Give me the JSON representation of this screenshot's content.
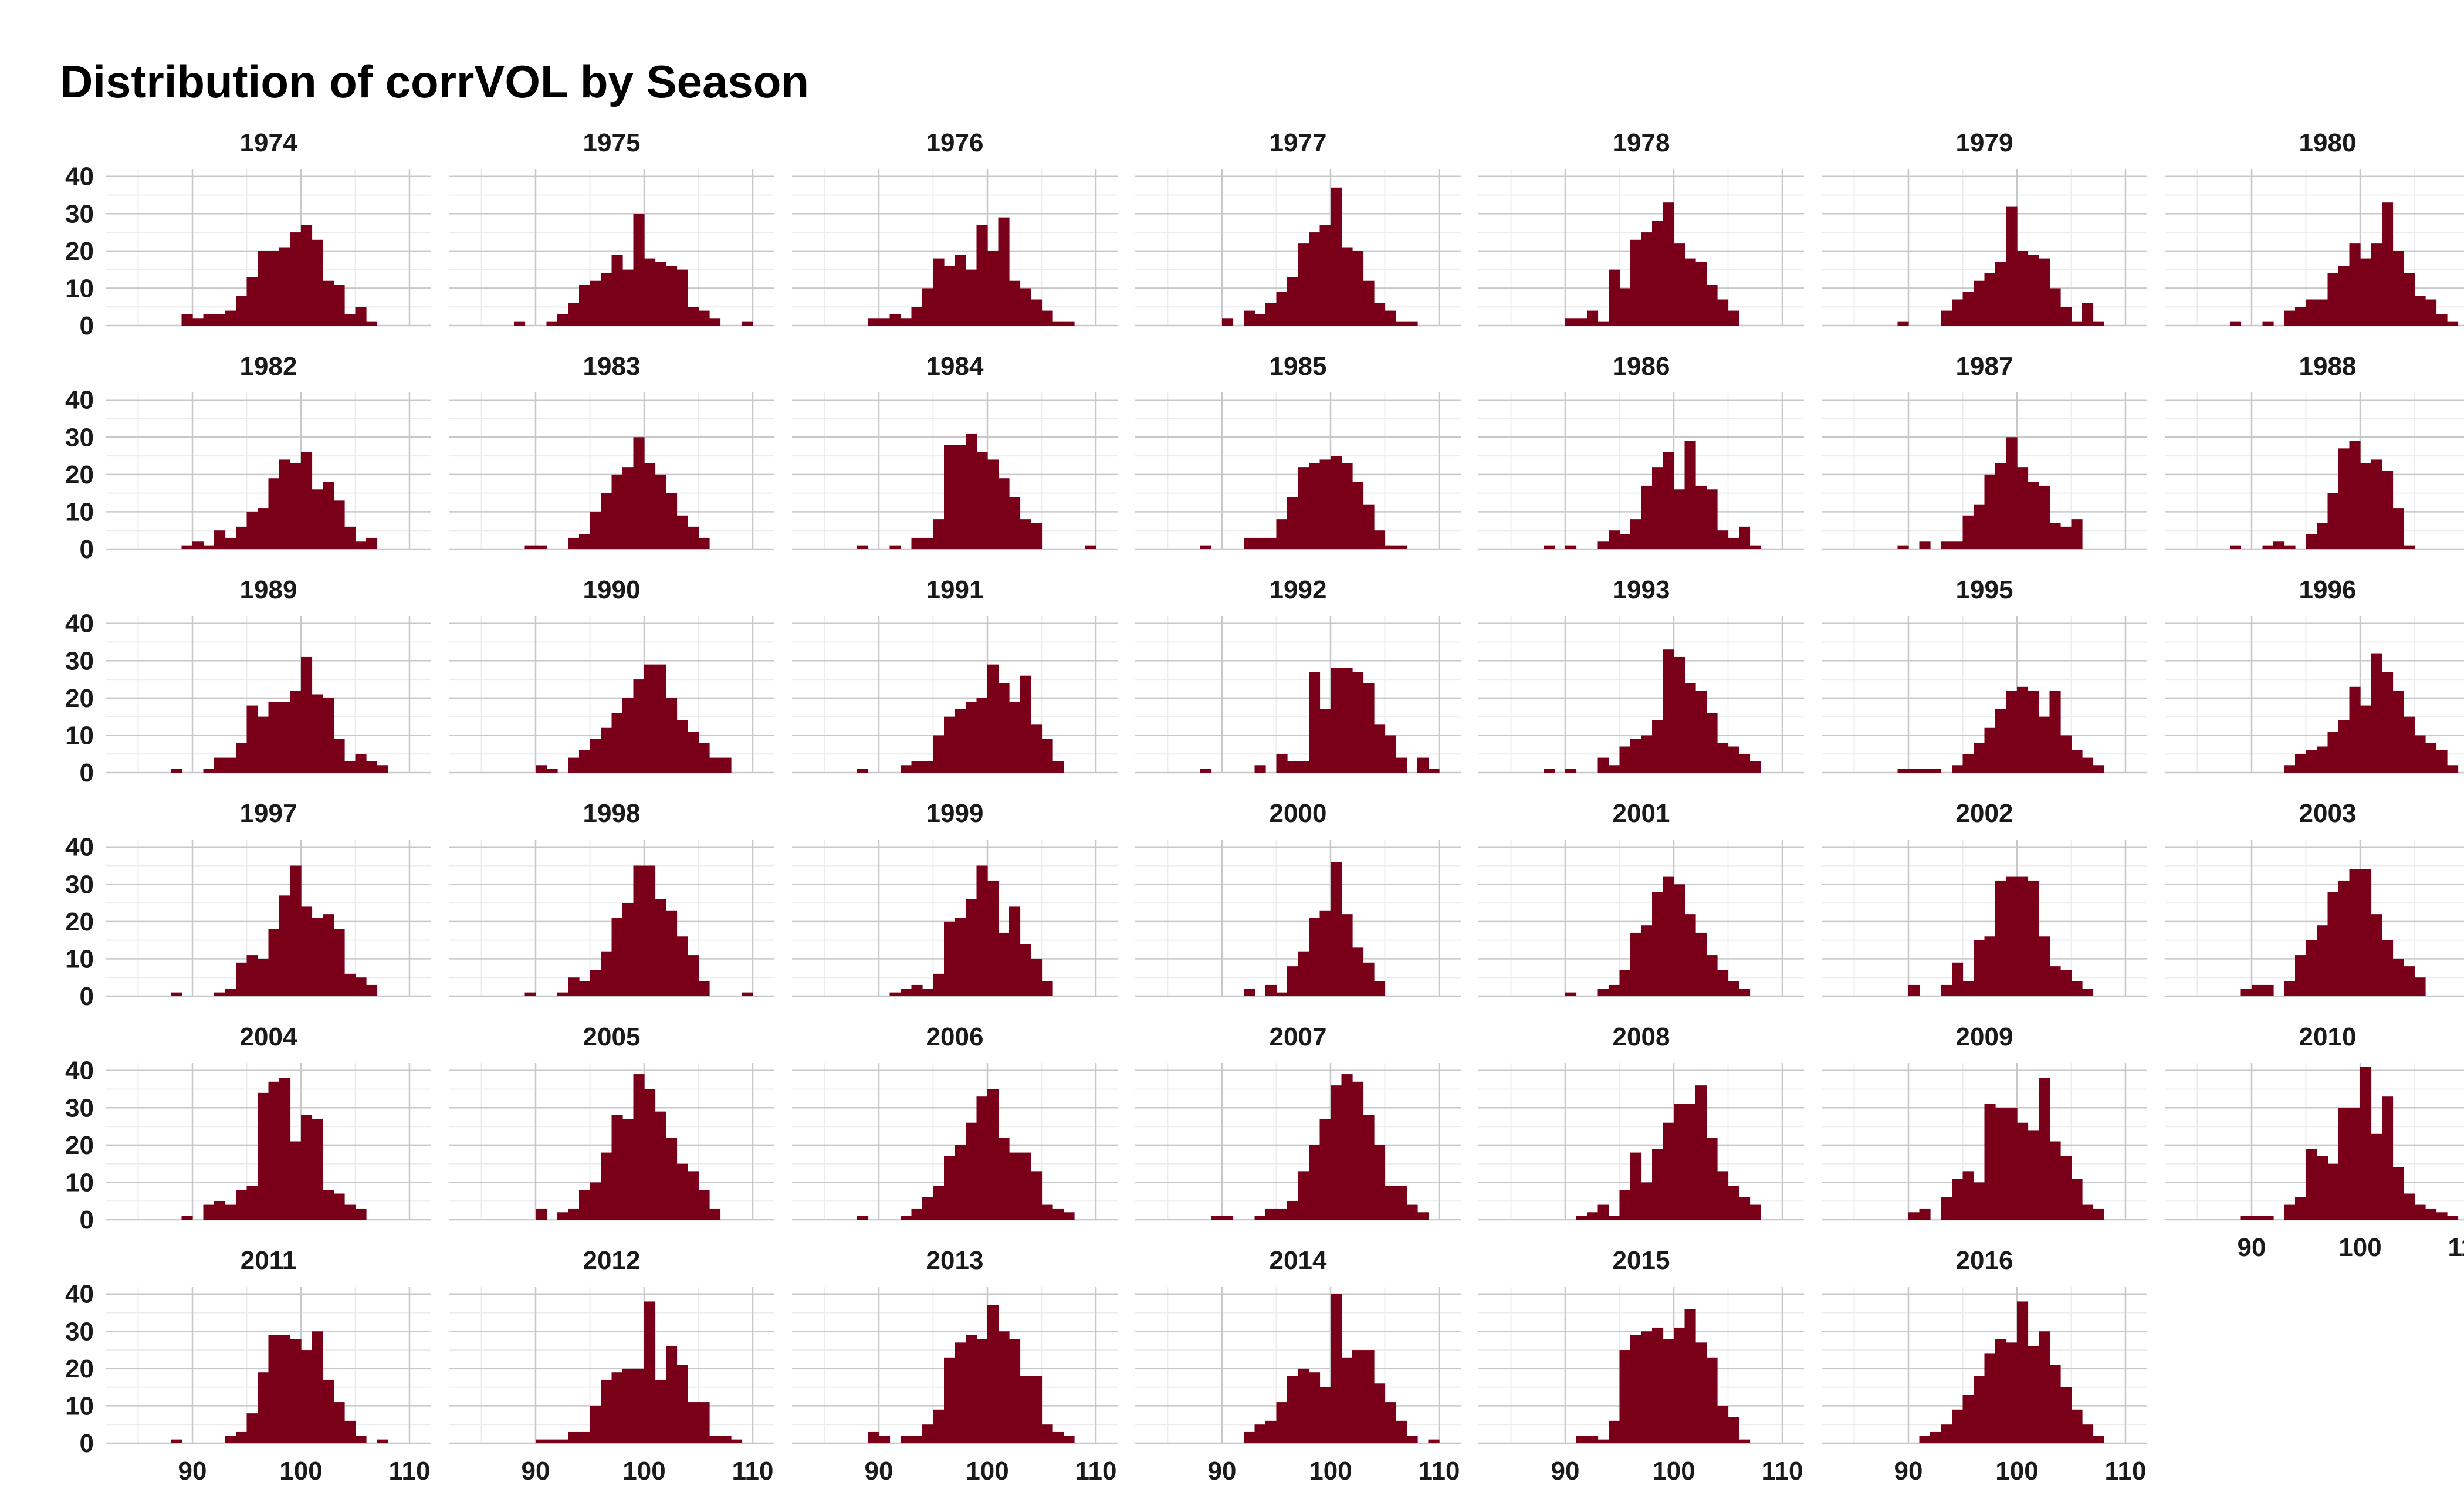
{
  "chart_data": {
    "type": "bar",
    "title": "Distribution of corrVOL by Season",
    "xlabel": "",
    "ylabel": "",
    "xlim": [
      82,
      112
    ],
    "ylim": [
      0,
      42
    ],
    "x_ticks": [
      "90",
      "100",
      "110"
    ],
    "y_ticks": [
      "0",
      "10",
      "20",
      "30",
      "40"
    ],
    "bar_color": "#7a0019",
    "bin_start": 82,
    "bin_width": 1,
    "grid": true,
    "panels": [
      {
        "season": "1974",
        "counts": [
          0,
          0,
          0,
          0,
          0,
          0,
          0,
          3,
          2,
          3,
          3,
          4,
          8,
          13,
          20,
          20,
          21,
          25,
          27,
          23,
          12,
          11,
          3,
          5,
          1,
          0,
          0,
          0,
          0,
          0
        ]
      },
      {
        "season": "1975",
        "counts": [
          0,
          0,
          0,
          0,
          0,
          0,
          1,
          0,
          0,
          1,
          3,
          6,
          11,
          12,
          14,
          19,
          15,
          30,
          18,
          17,
          16,
          15,
          5,
          4,
          2,
          0,
          0,
          1,
          0,
          0
        ]
      },
      {
        "season": "1976",
        "counts": [
          0,
          0,
          0,
          0,
          0,
          0,
          0,
          2,
          2,
          3,
          2,
          5,
          10,
          18,
          16,
          19,
          15,
          27,
          20,
          29,
          12,
          10,
          7,
          4,
          1,
          1,
          0,
          0,
          0,
          0
        ]
      },
      {
        "season": "1977",
        "counts": [
          0,
          0,
          0,
          0,
          0,
          0,
          0,
          0,
          2,
          0,
          4,
          3,
          6,
          9,
          13,
          22,
          25,
          27,
          37,
          21,
          20,
          12,
          6,
          4,
          1,
          1,
          0,
          0,
          0,
          0
        ]
      },
      {
        "season": "1978",
        "counts": [
          0,
          0,
          0,
          0,
          0,
          0,
          0,
          0,
          2,
          2,
          4,
          1,
          15,
          10,
          23,
          25,
          28,
          33,
          22,
          18,
          17,
          11,
          7,
          4,
          0,
          0,
          0,
          0,
          0,
          0
        ]
      },
      {
        "season": "1979",
        "counts": [
          0,
          0,
          0,
          0,
          0,
          0,
          0,
          1,
          0,
          0,
          0,
          4,
          7,
          9,
          12,
          14,
          17,
          32,
          20,
          19,
          18,
          10,
          5,
          1,
          6,
          1,
          0,
          0,
          0,
          0
        ]
      },
      {
        "season": "1980",
        "counts": [
          0,
          0,
          0,
          0,
          0,
          0,
          1,
          0,
          0,
          1,
          0,
          4,
          5,
          7,
          7,
          14,
          16,
          22,
          18,
          22,
          33,
          20,
          14,
          8,
          7,
          3,
          1,
          0,
          0,
          0
        ]
      },
      {
        "season": "1982",
        "counts": [
          0,
          0,
          0,
          0,
          0,
          0,
          0,
          1,
          2,
          1,
          5,
          3,
          6,
          10,
          11,
          19,
          24,
          23,
          26,
          16,
          18,
          13,
          6,
          2,
          3,
          0,
          0,
          0,
          0,
          0
        ]
      },
      {
        "season": "1983",
        "counts": [
          0,
          0,
          0,
          0,
          0,
          0,
          0,
          1,
          1,
          0,
          0,
          3,
          4,
          10,
          15,
          20,
          22,
          30,
          23,
          20,
          15,
          9,
          6,
          3,
          0,
          0,
          0,
          0,
          0,
          0
        ]
      },
      {
        "season": "1984",
        "counts": [
          0,
          0,
          0,
          0,
          0,
          0,
          1,
          0,
          0,
          1,
          0,
          3,
          3,
          8,
          28,
          28,
          31,
          26,
          24,
          19,
          14,
          8,
          7,
          0,
          0,
          0,
          0,
          1,
          0,
          0
        ]
      },
      {
        "season": "1985",
        "counts": [
          0,
          0,
          0,
          0,
          0,
          0,
          1,
          0,
          0,
          0,
          3,
          3,
          3,
          8,
          14,
          22,
          23,
          24,
          25,
          23,
          18,
          12,
          5,
          1,
          1,
          0,
          0,
          0,
          0,
          0
        ]
      },
      {
        "season": "1986",
        "counts": [
          0,
          0,
          0,
          0,
          0,
          0,
          1,
          0,
          1,
          0,
          0,
          2,
          5,
          4,
          8,
          17,
          22,
          26,
          16,
          29,
          17,
          16,
          5,
          3,
          6,
          1,
          0,
          0,
          0,
          0
        ]
      },
      {
        "season": "1987",
        "counts": [
          0,
          0,
          0,
          0,
          0,
          0,
          0,
          1,
          0,
          2,
          0,
          2,
          2,
          9,
          12,
          20,
          23,
          30,
          22,
          18,
          17,
          7,
          6,
          8,
          0,
          0,
          0,
          0,
          0,
          0
        ]
      },
      {
        "season": "1988",
        "counts": [
          0,
          0,
          0,
          0,
          0,
          0,
          1,
          0,
          0,
          1,
          2,
          1,
          0,
          4,
          7,
          15,
          27,
          29,
          23,
          24,
          21,
          11,
          1,
          0,
          0,
          0,
          0,
          0,
          0,
          0
        ]
      },
      {
        "season": "1989",
        "counts": [
          0,
          0,
          0,
          0,
          0,
          0,
          1,
          0,
          0,
          1,
          4,
          4,
          8,
          18,
          15,
          19,
          19,
          22,
          31,
          21,
          20,
          9,
          3,
          5,
          3,
          2,
          0,
          0,
          0,
          0
        ]
      },
      {
        "season": "1990",
        "counts": [
          0,
          0,
          0,
          0,
          0,
          0,
          0,
          0,
          2,
          1,
          0,
          4,
          6,
          9,
          12,
          16,
          20,
          25,
          29,
          29,
          20,
          14,
          11,
          8,
          4,
          4,
          0,
          0,
          0,
          0
        ]
      },
      {
        "season": "1991",
        "counts": [
          0,
          0,
          0,
          0,
          0,
          0,
          1,
          0,
          0,
          0,
          2,
          3,
          3,
          10,
          15,
          17,
          19,
          20,
          29,
          24,
          19,
          26,
          13,
          9,
          3,
          0,
          0,
          0,
          0,
          0
        ]
      },
      {
        "season": "1992",
        "counts": [
          0,
          0,
          0,
          0,
          0,
          0,
          1,
          0,
          0,
          0,
          0,
          2,
          0,
          5,
          3,
          3,
          27,
          17,
          28,
          28,
          27,
          24,
          13,
          10,
          4,
          0,
          4,
          1,
          0,
          0
        ]
      },
      {
        "season": "1993",
        "counts": [
          0,
          0,
          0,
          0,
          0,
          0,
          1,
          0,
          1,
          0,
          0,
          4,
          2,
          7,
          9,
          10,
          14,
          33,
          31,
          24,
          22,
          16,
          8,
          7,
          5,
          3,
          0,
          0,
          0,
          0
        ]
      },
      {
        "season": "1995",
        "counts": [
          0,
          0,
          0,
          0,
          0,
          0,
          0,
          1,
          1,
          1,
          1,
          0,
          2,
          5,
          8,
          12,
          17,
          22,
          23,
          22,
          15,
          22,
          10,
          6,
          4,
          2,
          0,
          0,
          0,
          0
        ]
      },
      {
        "season": "1996",
        "counts": [
          0,
          0,
          0,
          0,
          0,
          0,
          0,
          0,
          0,
          0,
          0,
          2,
          5,
          6,
          7,
          11,
          14,
          23,
          18,
          32,
          27,
          22,
          15,
          10,
          8,
          6,
          2,
          0,
          0,
          0
        ]
      },
      {
        "season": "1997",
        "counts": [
          0,
          0,
          0,
          0,
          0,
          0,
          1,
          0,
          0,
          0,
          1,
          2,
          9,
          11,
          10,
          18,
          27,
          35,
          24,
          21,
          22,
          18,
          6,
          5,
          3,
          0,
          0,
          0,
          0,
          0
        ]
      },
      {
        "season": "1998",
        "counts": [
          0,
          0,
          0,
          0,
          0,
          0,
          0,
          1,
          0,
          0,
          1,
          5,
          4,
          7,
          12,
          21,
          25,
          35,
          35,
          26,
          23,
          16,
          11,
          4,
          0,
          0,
          0,
          1,
          0,
          0
        ]
      },
      {
        "season": "1999",
        "counts": [
          0,
          0,
          0,
          0,
          0,
          0,
          0,
          0,
          0,
          1,
          2,
          3,
          2,
          6,
          20,
          21,
          26,
          35,
          31,
          17,
          24,
          14,
          10,
          4,
          0,
          0,
          0,
          0,
          0,
          0
        ]
      },
      {
        "season": "2000",
        "counts": [
          0,
          0,
          0,
          0,
          0,
          0,
          0,
          0,
          0,
          0,
          2,
          0,
          3,
          1,
          8,
          12,
          21,
          23,
          36,
          22,
          13,
          9,
          4,
          0,
          0,
          0,
          0,
          0,
          0,
          0
        ]
      },
      {
        "season": "2001",
        "counts": [
          0,
          0,
          0,
          0,
          0,
          0,
          0,
          0,
          1,
          0,
          0,
          2,
          3,
          7,
          17,
          19,
          28,
          32,
          30,
          22,
          17,
          11,
          7,
          4,
          2,
          0,
          0,
          0,
          0,
          0
        ]
      },
      {
        "season": "2002",
        "counts": [
          0,
          0,
          0,
          0,
          0,
          0,
          0,
          0,
          3,
          0,
          0,
          3,
          9,
          4,
          15,
          16,
          31,
          32,
          32,
          31,
          16,
          8,
          7,
          4,
          2,
          0,
          0,
          0,
          0,
          0
        ]
      },
      {
        "season": "2003",
        "counts": [
          0,
          0,
          0,
          0,
          0,
          0,
          0,
          2,
          3,
          3,
          0,
          4,
          11,
          15,
          19,
          28,
          31,
          34,
          34,
          22,
          15,
          10,
          8,
          5,
          0,
          0,
          0,
          0,
          0,
          0
        ]
      },
      {
        "season": "2004",
        "counts": [
          0,
          0,
          0,
          0,
          0,
          0,
          0,
          1,
          0,
          4,
          5,
          4,
          8,
          9,
          34,
          37,
          38,
          21,
          28,
          27,
          8,
          7,
          4,
          3,
          0,
          0,
          0,
          0,
          0,
          0
        ]
      },
      {
        "season": "2005",
        "counts": [
          0,
          0,
          0,
          0,
          0,
          0,
          0,
          0,
          3,
          0,
          2,
          3,
          8,
          10,
          18,
          28,
          27,
          39,
          35,
          29,
          22,
          15,
          13,
          8,
          3,
          0,
          0,
          0,
          0,
          0
        ]
      },
      {
        "season": "2006",
        "counts": [
          0,
          0,
          0,
          0,
          0,
          0,
          1,
          0,
          0,
          0,
          1,
          3,
          6,
          9,
          17,
          20,
          26,
          33,
          35,
          22,
          18,
          18,
          13,
          4,
          3,
          2,
          0,
          0,
          0,
          0
        ]
      },
      {
        "season": "2007",
        "counts": [
          0,
          0,
          0,
          0,
          0,
          0,
          0,
          1,
          1,
          0,
          0,
          1,
          3,
          3,
          5,
          13,
          20,
          27,
          36,
          39,
          37,
          28,
          20,
          9,
          9,
          4,
          2,
          0,
          0,
          0
        ]
      },
      {
        "season": "2008",
        "counts": [
          0,
          0,
          0,
          0,
          0,
          0,
          0,
          0,
          0,
          1,
          2,
          4,
          1,
          8,
          18,
          10,
          19,
          26,
          31,
          31,
          36,
          22,
          13,
          9,
          6,
          4,
          0,
          0,
          0,
          0
        ]
      },
      {
        "season": "2009",
        "counts": [
          0,
          0,
          0,
          0,
          0,
          0,
          0,
          0,
          2,
          3,
          0,
          6,
          11,
          13,
          10,
          31,
          30,
          30,
          26,
          24,
          38,
          21,
          17,
          11,
          4,
          3,
          0,
          0,
          0,
          0
        ]
      },
      {
        "season": "2010",
        "counts": [
          0,
          0,
          0,
          0,
          0,
          0,
          0,
          1,
          1,
          1,
          0,
          4,
          6,
          19,
          17,
          15,
          30,
          30,
          41,
          23,
          33,
          14,
          7,
          4,
          3,
          2,
          1,
          0,
          0,
          0
        ]
      },
      {
        "season": "2011",
        "counts": [
          0,
          0,
          0,
          0,
          0,
          0,
          1,
          0,
          0,
          0,
          0,
          2,
          3,
          8,
          19,
          29,
          29,
          28,
          25,
          30,
          17,
          11,
          6,
          2,
          0,
          1,
          0,
          0,
          0,
          0
        ]
      },
      {
        "season": "2012",
        "counts": [
          0,
          0,
          0,
          0,
          0,
          0,
          0,
          0,
          1,
          1,
          1,
          3,
          3,
          10,
          17,
          19,
          20,
          20,
          38,
          17,
          26,
          21,
          11,
          11,
          2,
          2,
          1,
          0,
          0,
          0
        ]
      },
      {
        "season": "2013",
        "counts": [
          0,
          0,
          0,
          0,
          0,
          0,
          0,
          3,
          2,
          0,
          2,
          2,
          5,
          9,
          23,
          27,
          29,
          28,
          37,
          30,
          28,
          18,
          18,
          5,
          3,
          2,
          0,
          0,
          0,
          0
        ]
      },
      {
        "season": "2014",
        "counts": [
          0,
          0,
          0,
          0,
          0,
          0,
          0,
          0,
          0,
          0,
          3,
          5,
          6,
          11,
          18,
          20,
          19,
          15,
          40,
          23,
          25,
          25,
          16,
          11,
          6,
          2,
          0,
          1,
          0,
          0
        ]
      },
      {
        "season": "2015",
        "counts": [
          0,
          0,
          0,
          0,
          0,
          0,
          0,
          0,
          0,
          2,
          2,
          1,
          6,
          25,
          29,
          30,
          31,
          28,
          31,
          36,
          27,
          23,
          10,
          7,
          1,
          0,
          0,
          0,
          0,
          0
        ]
      },
      {
        "season": "2016",
        "counts": [
          0,
          0,
          0,
          0,
          0,
          0,
          0,
          0,
          0,
          2,
          3,
          5,
          9,
          13,
          18,
          24,
          28,
          27,
          38,
          26,
          30,
          21,
          15,
          9,
          5,
          2,
          0,
          0,
          0,
          0
        ]
      }
    ]
  }
}
